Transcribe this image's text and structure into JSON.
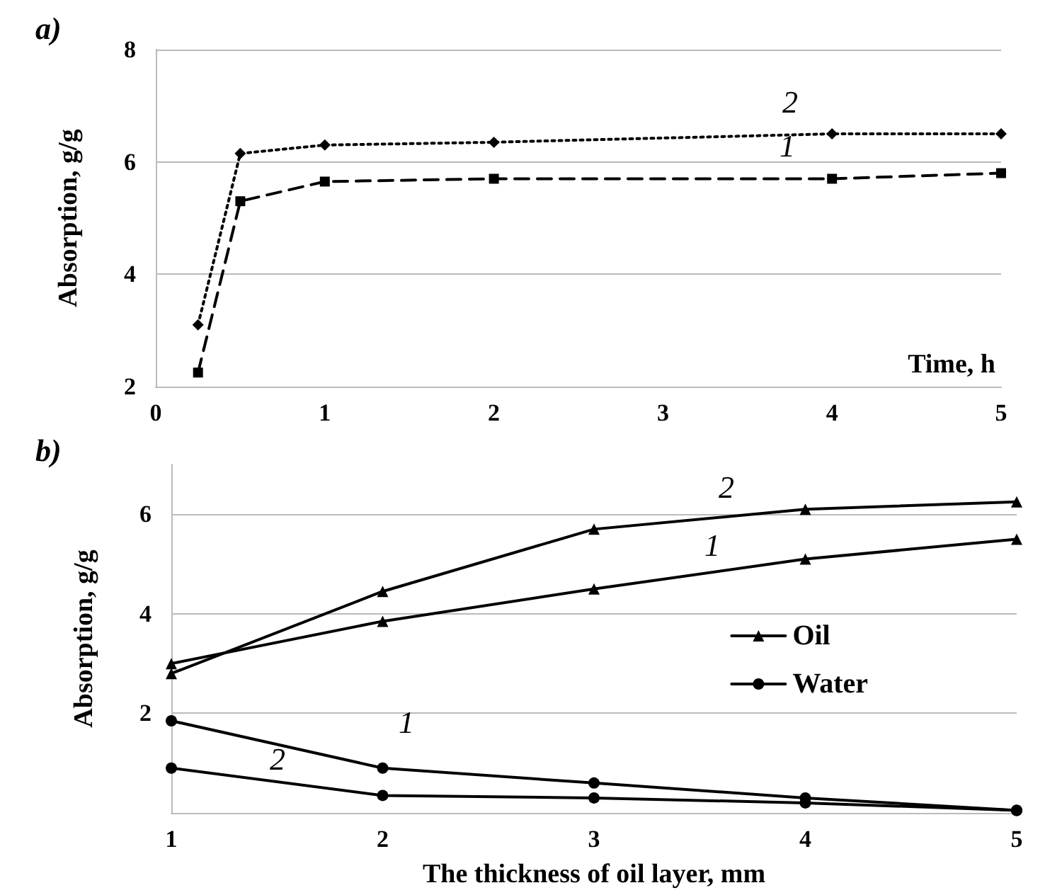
{
  "chart_data": [
    {
      "type": "line",
      "title": "a)",
      "xlabel": "Time, h",
      "ylabel": "Absorption, g/g",
      "xlim": [
        0,
        5
      ],
      "xticks": [
        0,
        1,
        2,
        3,
        4,
        5
      ],
      "ylim": [
        2,
        8
      ],
      "yticks": [
        2,
        4,
        6,
        8
      ],
      "grid": "y",
      "legend": false,
      "series": [
        {
          "color": "#000000",
          "marker": "diamond",
          "line_style": "dotted",
          "x": [
            0.25,
            0.5,
            1,
            2,
            4,
            5
          ],
          "values": [
            3.1,
            6.15,
            6.3,
            6.35,
            6.5,
            6.5
          ]
        },
        {
          "color": "#000000",
          "marker": "square",
          "line_style": "dashed",
          "x": [
            0.25,
            0.5,
            1,
            2,
            4,
            5
          ],
          "values": [
            2.25,
            5.3,
            5.65,
            5.7,
            5.7,
            5.8
          ]
        }
      ],
      "annotations": [
        "2",
        "1"
      ]
    },
    {
      "type": "line",
      "title": "b)",
      "xlabel": "The thickness of oil layer, mm",
      "ylabel": "Absorption, g/g",
      "xlim": [
        1,
        5
      ],
      "xticks": [
        1,
        2,
        3,
        4,
        5
      ],
      "ylim": [
        0,
        7
      ],
      "yticks": [
        2,
        4,
        6
      ],
      "grid": "y",
      "legend": "right",
      "series": [
        {
          "name": "Oil",
          "color": "#000000",
          "marker": "triangle",
          "line_style": "solid",
          "x": [
            1,
            2,
            3,
            4,
            5
          ],
          "values": [
            2.8,
            4.45,
            5.7,
            6.1,
            6.25
          ]
        },
        {
          "color": "#000000",
          "marker": "triangle",
          "line_style": "solid",
          "x": [
            1,
            2,
            3,
            4,
            5
          ],
          "values": [
            3.0,
            3.85,
            4.5,
            5.1,
            5.5
          ]
        },
        {
          "name": "Water",
          "color": "#000000",
          "marker": "circle",
          "line_style": "solid",
          "x": [
            1,
            2,
            3,
            4,
            5
          ],
          "values": [
            1.85,
            0.9,
            0.6,
            0.3,
            0.05
          ]
        },
        {
          "color": "#000000",
          "marker": "circle",
          "line_style": "solid",
          "x": [
            1,
            2,
            3,
            4,
            5
          ],
          "values": [
            0.9,
            0.35,
            0.3,
            0.2,
            0.05
          ]
        }
      ],
      "annotations": [
        "2",
        "1",
        "1",
        "2"
      ]
    }
  ]
}
